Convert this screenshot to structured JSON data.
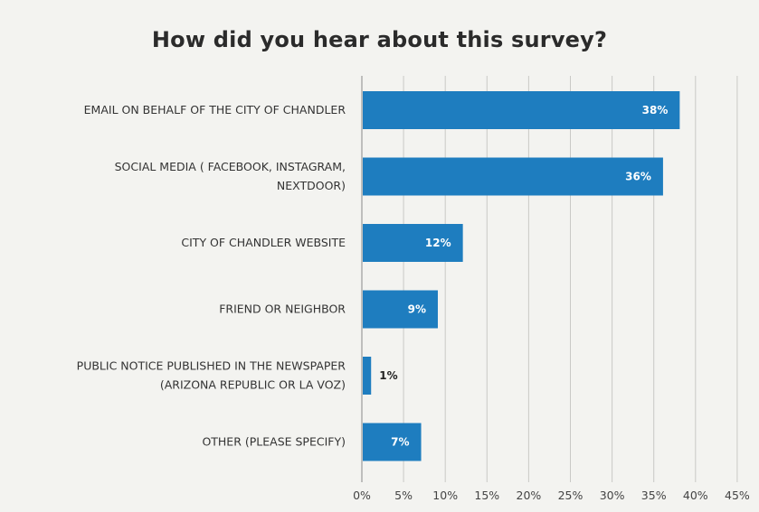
{
  "chart_data": {
    "type": "bar",
    "orientation": "horizontal",
    "title": "How did you hear about this survey?",
    "categories": [
      "EMAIL ON BEHALF OF THE CITY OF CHANDLER",
      "SOCIAL MEDIA ( FACEBOOK, INSTAGRAM, NEXTDOOR)",
      "CITY OF CHANDLER WEBSITE",
      "FRIEND OR NEIGHBOR",
      "PUBLIC NOTICE PUBLISHED IN THE NEWSPAPER (ARIZONA REPUBLIC OR LA VOZ)",
      "OTHER (PLEASE SPECIFY)"
    ],
    "category_lines": [
      [
        "EMAIL ON BEHALF OF THE CITY OF CHANDLER"
      ],
      [
        "SOCIAL MEDIA ( FACEBOOK, INSTAGRAM,",
        "NEXTDOOR)"
      ],
      [
        "CITY OF CHANDLER WEBSITE"
      ],
      [
        "FRIEND OR NEIGHBOR"
      ],
      [
        "PUBLIC NOTICE PUBLISHED IN THE NEWSPAPER",
        "(ARIZONA REPUBLIC OR LA VOZ)"
      ],
      [
        "OTHER (PLEASE SPECIFY)"
      ]
    ],
    "values": [
      38,
      36,
      12,
      9,
      1,
      7
    ],
    "value_labels": [
      "38%",
      "36%",
      "12%",
      "9%",
      "1%",
      "7%"
    ],
    "xlim": [
      0,
      45
    ],
    "xticks": [
      0,
      5,
      10,
      15,
      20,
      25,
      30,
      35,
      40,
      45
    ],
    "xtick_labels": [
      "0%",
      "5%",
      "10%",
      "15%",
      "20%",
      "25%",
      "30%",
      "35%",
      "40%",
      "45%"
    ],
    "grid": "vertical",
    "colors": {
      "bar": "#1e7dbf",
      "grid": "#c9c9c6",
      "axis": "#9a9a9a",
      "value_inside": "#ffffff",
      "value_outside": "#222222"
    }
  }
}
